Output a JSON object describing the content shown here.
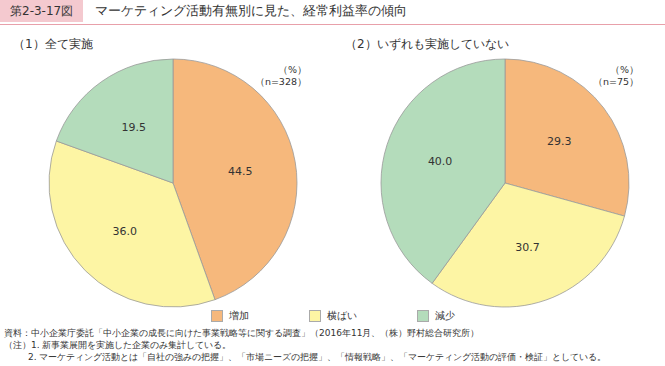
{
  "figure_label": "第2-3-17図",
  "title": "マーケティング活動有無別に見た、経常利益率の傾向",
  "notes": [
    "資料：中小企業庁委託「中小企業の成長に向けた事業戦略等に関する調査」（2016年11月、（株）野村総合研究所）",
    "（注）1. 新事業展開を実施した企業のみ集計している。",
    "2. マーケティング活動とは「自社の強みの把握」、「市場ニーズの把握」、「情報戦略」、「マーケティング活動の評価・検証」としている。"
  ],
  "chart_data": [
    {
      "type": "pie",
      "title": "（1）全て実施",
      "unit": "（%）",
      "sample": "（n=328）",
      "categories": [
        "増加",
        "横ばい",
        "減少"
      ],
      "values": [
        44.5,
        36.0,
        19.5
      ],
      "value_labels": [
        "44.5",
        "36.0",
        "19.5"
      ],
      "colors": [
        "#f6b87c",
        "#fdf5a4",
        "#b4dcbb"
      ],
      "data_labels": true,
      "legend": "bottom"
    },
    {
      "type": "pie",
      "title": "（2）いずれも実施していない",
      "unit": "（%）",
      "sample": "（n=75）",
      "categories": [
        "増加",
        "横ばい",
        "減少"
      ],
      "values": [
        29.3,
        30.7,
        40.0
      ],
      "value_labels": [
        "29.3",
        "30.7",
        "40.0"
      ],
      "colors": [
        "#f6b87c",
        "#fdf5a4",
        "#b4dcbb"
      ],
      "data_labels": true
    }
  ]
}
